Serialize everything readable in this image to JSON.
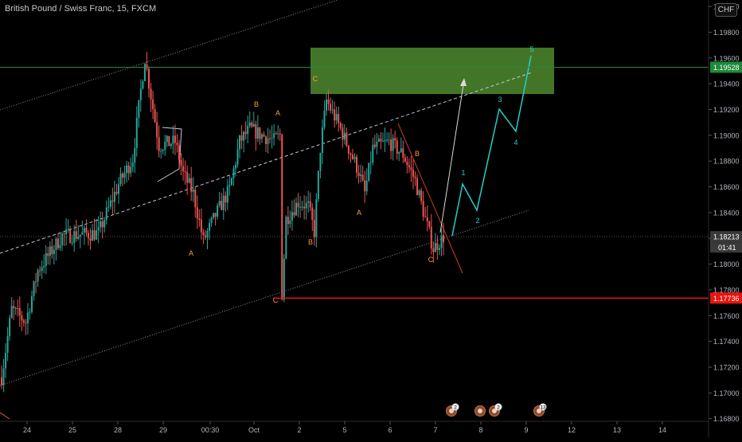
{
  "header": {
    "title": "British Pound / Swiss Franc, 15, FXCM",
    "currency_badge": "CHF"
  },
  "colors": {
    "background": "#000000",
    "up_candle": "#26a69a",
    "down_candle": "#ef5350",
    "wave_label": "#ff9a3c",
    "projection": "#1fd1c8",
    "target_zone": "#4f8a2f",
    "resistance_line": "#1f8a3a",
    "support_line": "#e8140f",
    "current_price": "#3a3a3a"
  },
  "chart_data": {
    "type": "candlestick",
    "title": "British Pound / Swiss Franc, 15, FXCM",
    "xlabel": "",
    "ylabel": "",
    "ylim": [
      1.1665,
      1.2005
    ],
    "x_tick_labels": [
      "24",
      "25",
      "28",
      "29",
      "00:30",
      "Oct",
      "2",
      "5",
      "6",
      "7",
      "8",
      "9",
      "12",
      "13",
      "14"
    ],
    "y_tick_values": [
      1.168,
      1.17,
      1.172,
      1.174,
      1.176,
      1.178,
      1.18,
      1.182,
      1.184,
      1.186,
      1.188,
      1.19,
      1.192,
      1.194,
      1.196,
      1.198,
      1.2
    ],
    "y_tick_labels": [
      "1.16800",
      "1.17000",
      "1.17200",
      "1.17400",
      "1.17600",
      "1.17800",
      "1.18000",
      "1.18200",
      "1.18400",
      "1.18600",
      "1.18800",
      "1.19000",
      "1.19200",
      "1.19400",
      "1.19600",
      "1.19800",
      "1.20000"
    ],
    "price_anchors": [
      {
        "i": 0,
        "p": 1.1712
      },
      {
        "i": 5,
        "p": 1.1765
      },
      {
        "i": 12,
        "p": 1.1755
      },
      {
        "i": 18,
        "p": 1.1795
      },
      {
        "i": 30,
        "p": 1.1822
      },
      {
        "i": 48,
        "p": 1.1824
      },
      {
        "i": 58,
        "p": 1.1862
      },
      {
        "i": 65,
        "p": 1.1882
      },
      {
        "i": 69,
        "p": 1.1935
      },
      {
        "i": 71,
        "p": 1.196
      },
      {
        "i": 78,
        "p": 1.1892
      },
      {
        "i": 86,
        "p": 1.1895
      },
      {
        "i": 90,
        "p": 1.187
      },
      {
        "i": 95,
        "p": 1.1855
      },
      {
        "i": 100,
        "p": 1.1818
      },
      {
        "i": 106,
        "p": 1.1838
      },
      {
        "i": 113,
        "p": 1.1858
      },
      {
        "i": 118,
        "p": 1.1895
      },
      {
        "i": 123,
        "p": 1.1905
      },
      {
        "i": 129,
        "p": 1.19
      },
      {
        "i": 135,
        "p": 1.1896
      },
      {
        "i": 138,
        "p": 1.19
      },
      {
        "i": 139,
        "p": 1.1777
      },
      {
        "i": 141,
        "p": 1.1835
      },
      {
        "i": 147,
        "p": 1.1848
      },
      {
        "i": 152,
        "p": 1.1845
      },
      {
        "i": 155,
        "p": 1.1825
      },
      {
        "i": 158,
        "p": 1.189
      },
      {
        "i": 161,
        "p": 1.1927
      },
      {
        "i": 168,
        "p": 1.1905
      },
      {
        "i": 172,
        "p": 1.189
      },
      {
        "i": 177,
        "p": 1.1872
      },
      {
        "i": 180,
        "p": 1.1855
      },
      {
        "i": 184,
        "p": 1.189
      },
      {
        "i": 192,
        "p": 1.1895
      },
      {
        "i": 199,
        "p": 1.1885
      },
      {
        "i": 205,
        "p": 1.1865
      },
      {
        "i": 210,
        "p": 1.1835
      },
      {
        "i": 214,
        "p": 1.1812
      },
      {
        "i": 219,
        "p": 1.1821
      }
    ],
    "projection_path": [
      {
        "x": "7",
        "y": 1.1812
      },
      {
        "x": "1",
        "y": 1.1855
      },
      {
        "x": "2",
        "y": 1.1835
      },
      {
        "x": "3",
        "y": 1.1914
      },
      {
        "x": "4",
        "y": 1.1898
      },
      {
        "x": "5",
        "y": 1.1955
      }
    ],
    "projection_labels": [
      "1",
      "2",
      "3",
      "4",
      "5"
    ],
    "wave_labels": [
      "B",
      "A",
      "A",
      "C",
      "B",
      "C",
      "A",
      "B",
      "C"
    ],
    "target_zone": {
      "from": 1.1932,
      "to": 1.1968
    },
    "levels": [
      {
        "name": "resistance",
        "value": 1.19528,
        "label": "1.19528"
      },
      {
        "name": "current_price",
        "value": 1.18213,
        "label": "1.18213",
        "countdown": "01:41"
      },
      {
        "name": "support",
        "value": 1.17736,
        "label": "1.17736"
      }
    ],
    "event_badges": [
      "2",
      "",
      "2",
      "13"
    ],
    "grid": false
  }
}
